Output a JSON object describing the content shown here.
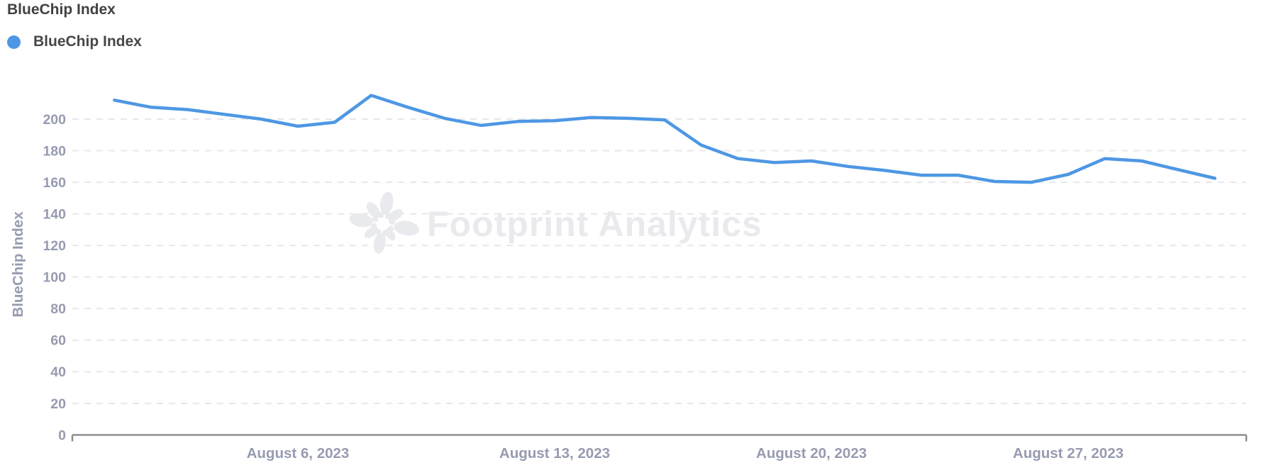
{
  "header": {
    "title": "BlueChip Index"
  },
  "legend": {
    "label": "BlueChip Index",
    "marker_color": "#4e97e4"
  },
  "watermark": {
    "text": "Footprint Analytics",
    "color": "#e9eaee"
  },
  "colors": {
    "series_line": "#4e97e4",
    "axis_text": "#969bb0",
    "grid_line": "#e7e7ea",
    "axis_line": "#8d8d93",
    "title_text": "#414141"
  },
  "chart_data": {
    "type": "line",
    "title": "BlueChip Index",
    "xlabel": "",
    "ylabel": "BlueChip Index",
    "grid": "horizontal-dashed",
    "legend_position": "top-left",
    "ylim": [
      0,
      220
    ],
    "yticks": [
      0,
      20,
      40,
      60,
      80,
      100,
      120,
      140,
      160,
      180,
      200
    ],
    "x": [
      "2023-08-01",
      "2023-08-02",
      "2023-08-03",
      "2023-08-04",
      "2023-08-05",
      "2023-08-06",
      "2023-08-07",
      "2023-08-08",
      "2023-08-09",
      "2023-08-10",
      "2023-08-11",
      "2023-08-12",
      "2023-08-13",
      "2023-08-14",
      "2023-08-15",
      "2023-08-16",
      "2023-08-17",
      "2023-08-18",
      "2023-08-19",
      "2023-08-20",
      "2023-08-21",
      "2023-08-22",
      "2023-08-23",
      "2023-08-24",
      "2023-08-25",
      "2023-08-26",
      "2023-08-27",
      "2023-08-28",
      "2023-08-29",
      "2023-08-30",
      "2023-08-31"
    ],
    "xticks": [
      {
        "index": 5,
        "label": "August 6, 2023"
      },
      {
        "index": 12,
        "label": "August 13, 2023"
      },
      {
        "index": 19,
        "label": "August 20, 2023"
      },
      {
        "index": 26,
        "label": "August 27, 2023"
      }
    ],
    "series": [
      {
        "name": "BlueChip Index",
        "color": "#4e97e4",
        "values": [
          212,
          207.5,
          206,
          203,
          200,
          195.5,
          198,
          215,
          207.5,
          200.5,
          196,
          198.5,
          199,
          201,
          200.5,
          199.5,
          183.5,
          175,
          172.5,
          173.5,
          170,
          167.5,
          164.5,
          164.5,
          160.5,
          160,
          165,
          175,
          173.5,
          168,
          162.5
        ]
      }
    ]
  }
}
